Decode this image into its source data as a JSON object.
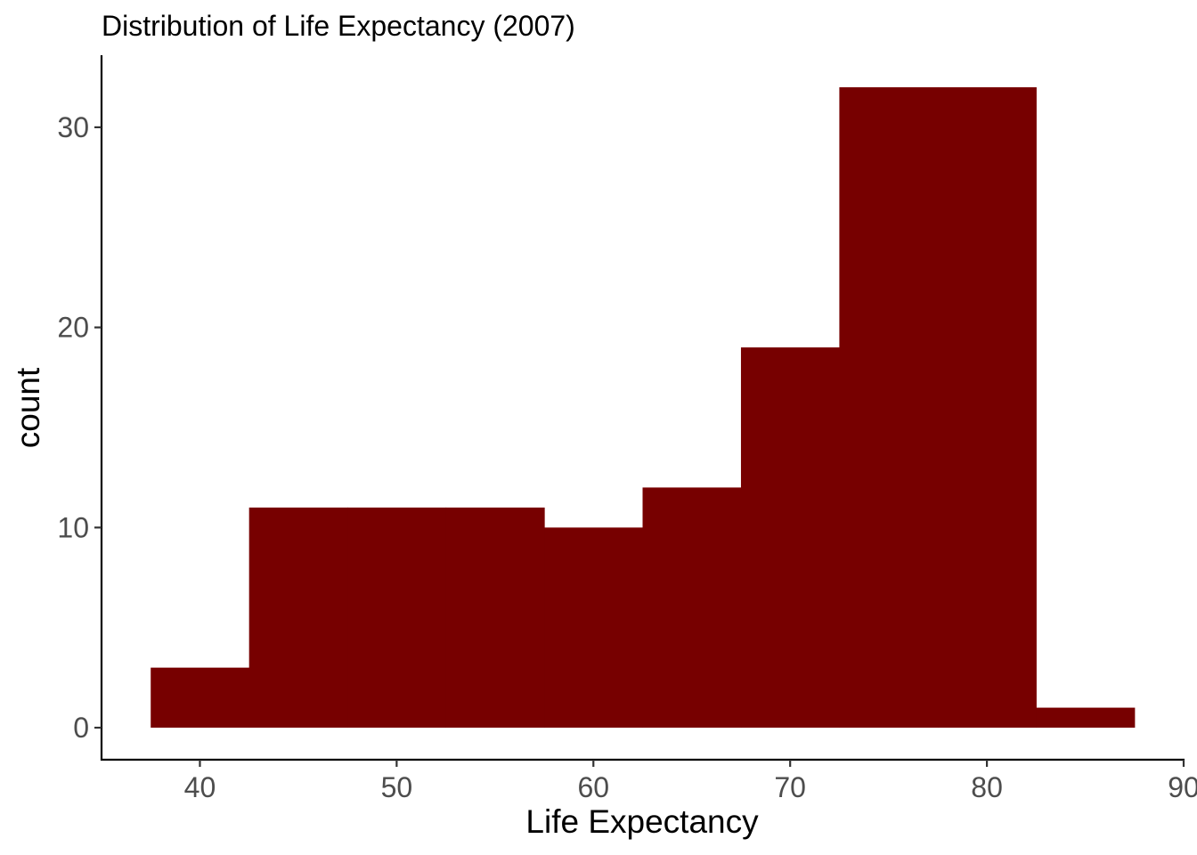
{
  "chart_data": {
    "type": "bar",
    "title": "Distribution of Life Expectancy (2007)",
    "xlabel": "Life Expectancy",
    "ylabel": "count",
    "bin_width": 5,
    "bins": [
      {
        "x_start": 37.5,
        "x_end": 42.5,
        "count": 3
      },
      {
        "x_start": 42.5,
        "x_end": 47.5,
        "count": 11
      },
      {
        "x_start": 47.5,
        "x_end": 52.5,
        "count": 11
      },
      {
        "x_start": 52.5,
        "x_end": 57.5,
        "count": 11
      },
      {
        "x_start": 57.5,
        "x_end": 62.5,
        "count": 10
      },
      {
        "x_start": 62.5,
        "x_end": 67.5,
        "count": 12
      },
      {
        "x_start": 67.5,
        "x_end": 72.5,
        "count": 19
      },
      {
        "x_start": 72.5,
        "x_end": 77.5,
        "count": 32
      },
      {
        "x_start": 77.5,
        "x_end": 82.5,
        "count": 32
      },
      {
        "x_start": 82.5,
        "x_end": 87.5,
        "count": 1
      }
    ],
    "xlim": [
      35.0,
      90.0
    ],
    "ylim": [
      -1.6,
      33.6
    ],
    "x_ticks": [
      {
        "value": 40,
        "label": "40"
      },
      {
        "value": 50,
        "label": "50"
      },
      {
        "value": 60,
        "label": "60"
      },
      {
        "value": 70,
        "label": "70"
      },
      {
        "value": 80,
        "label": "80"
      },
      {
        "value": 90,
        "label": "90"
      }
    ],
    "y_ticks": [
      {
        "value": 0,
        "label": "0"
      },
      {
        "value": 10,
        "label": "10"
      },
      {
        "value": 20,
        "label": "20"
      },
      {
        "value": 30,
        "label": "30"
      }
    ],
    "bar_color": "#770000",
    "grid": false,
    "legend": "none"
  }
}
